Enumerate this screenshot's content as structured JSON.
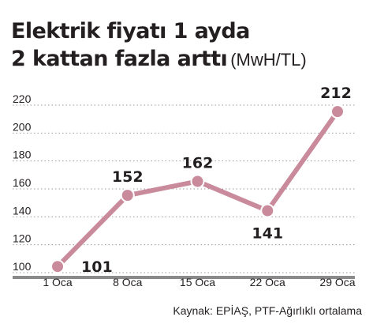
{
  "title": {
    "line1": "Elektrik fiyatı 1 ayda",
    "line2": "2 kattan fazla arttı",
    "unit": "(MwH/TL)"
  },
  "source": "Kaynak: EPİAŞ, PTF-Ağırlıklı ortalama",
  "chart_data": {
    "type": "line",
    "title": "Elektrik fiyatı 1 ayda 2 kattan fazla arttı (MwH/TL)",
    "xlabel": "",
    "ylabel": "",
    "categories": [
      "1 Oca",
      "8 Oca",
      "15 Oca",
      "22 Oca",
      "29 Oca"
    ],
    "values": [
      101,
      152,
      162,
      141,
      212
    ],
    "data_labels": [
      "101",
      "152",
      "162",
      "141",
      "212"
    ],
    "y_ticks": [
      "100",
      "120",
      "140",
      "160",
      "180",
      "200",
      "220"
    ],
    "ylim": [
      100,
      220
    ],
    "grid": true,
    "legend": "none",
    "colors": {
      "line": "#c98a9c",
      "marker_fill": "#c98a9c",
      "marker_stroke": "#ffffff",
      "grid": "#9b9b9b",
      "axis": "#8a8a8a",
      "text": "#231f20"
    }
  }
}
